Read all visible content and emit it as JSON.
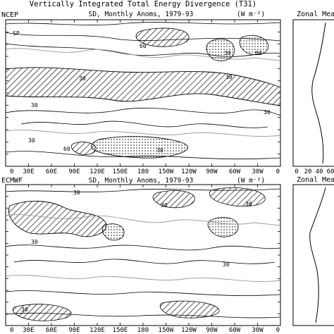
{
  "figure": {
    "title": "Vertically Integrated Total Energy Divergence (T31)",
    "zonal_title_top": "Zonal Mea",
    "zonal_title_bottom": "Zonal Mea"
  },
  "panels": [
    {
      "label": "NCEP",
      "subtitle": "SD, Monthly Anoms, 1979-93",
      "units": "(W m⁻²)",
      "contour_labels": [
        "60",
        "30",
        "60",
        "30",
        "30",
        "30",
        "30",
        "30",
        "60",
        "30",
        "SP"
      ]
    },
    {
      "label": "ECMWF",
      "subtitle": "SD, Monthly Anoms, 1979-93",
      "units": "(W m⁻²)",
      "contour_labels": [
        "30",
        "30",
        "30",
        "30",
        "30",
        "30"
      ]
    }
  ],
  "chart_data": {
    "type": "contour-map",
    "x_axis": {
      "tick_labels": [
        "0",
        "30E",
        "60E",
        "90E",
        "120E",
        "150E",
        "180",
        "150W",
        "120W",
        "90W",
        "60W",
        "30W",
        "0"
      ]
    },
    "contour_levels": [
      30,
      60
    ],
    "zonal_mean_axis": {
      "tick_labels": [
        "0",
        "20",
        "40",
        "60"
      ]
    }
  }
}
